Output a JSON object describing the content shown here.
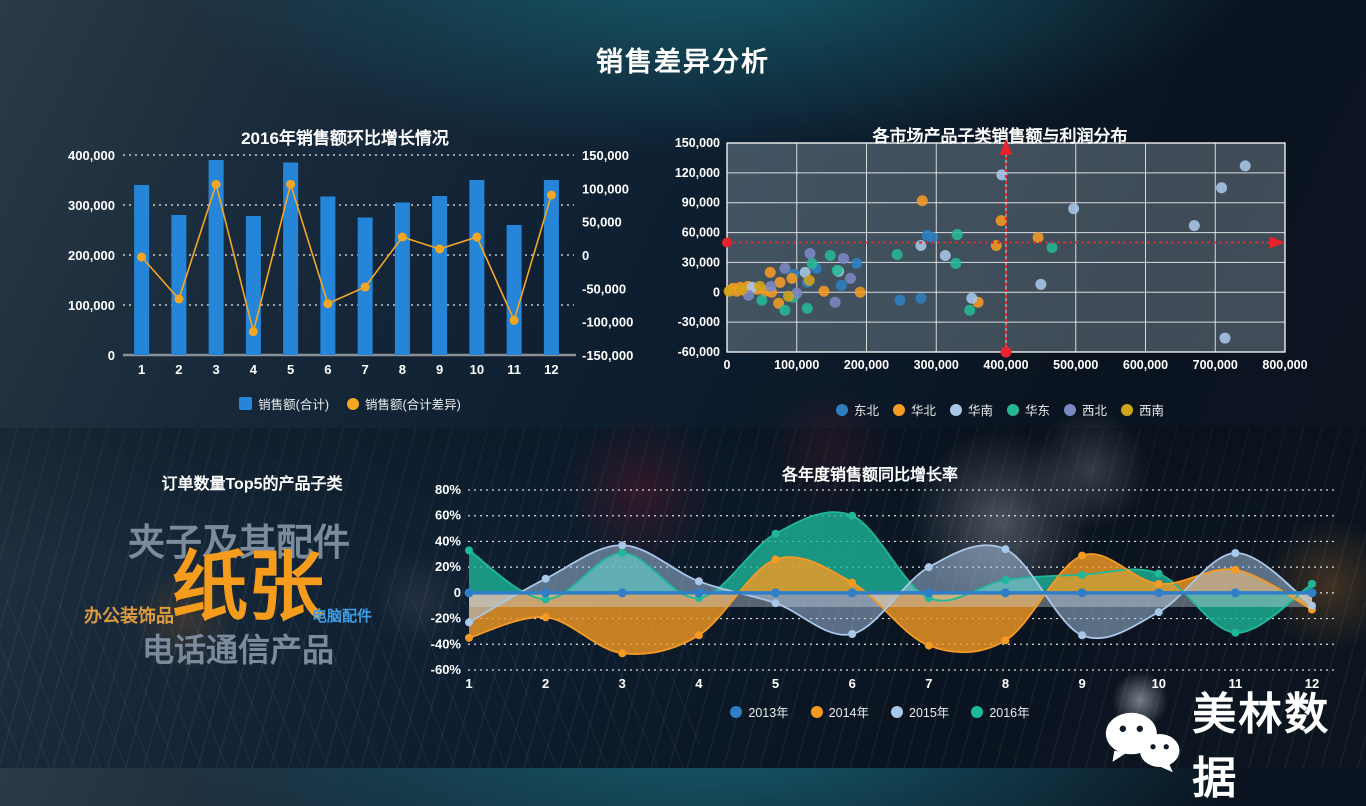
{
  "page_title": "销售差异分析",
  "logo": {
    "brand": "美林数据"
  },
  "chart_data": [
    {
      "type": "bar",
      "title": "2016年销售额环比增长情况",
      "categories": [
        "1",
        "2",
        "3",
        "4",
        "5",
        "6",
        "7",
        "8",
        "9",
        "10",
        "11",
        "12"
      ],
      "left_axis": {
        "min": 0,
        "max": 400000,
        "ticks": [
          "400,000",
          "300,000",
          "200,000",
          "100,000",
          "0"
        ],
        "tick_values": [
          400000,
          300000,
          200000,
          100000,
          0
        ]
      },
      "right_axis": {
        "min": -150000,
        "max": 150000,
        "ticks": [
          "150,000",
          "100,000",
          "50,000",
          "0",
          "-50,000",
          "-100,000",
          "-150,000"
        ],
        "tick_values": [
          150000,
          100000,
          50000,
          0,
          -50000,
          -100000,
          -150000
        ]
      },
      "series": [
        {
          "name": "销售额(合计)",
          "kind": "bar",
          "axis": "left",
          "color": "#2585d8",
          "values": [
            340000,
            280000,
            390000,
            278000,
            385000,
            317000,
            275000,
            305000,
            318000,
            350000,
            260000,
            350000
          ]
        },
        {
          "name": "销售额(合计差异)",
          "kind": "line",
          "axis": "right",
          "color": "#f5a623",
          "values": [
            -3000,
            -66000,
            106000,
            -115000,
            106000,
            -73000,
            -48000,
            27000,
            9000,
            27000,
            -98000,
            90000
          ]
        }
      ]
    },
    {
      "type": "scatter",
      "title": "各市场产品子类销售额与利润分布",
      "xlim": [
        0,
        800000
      ],
      "ylim": [
        -60000,
        150000
      ],
      "x_ticks": [
        "0",
        "100,000",
        "200,000",
        "300,000",
        "400,000",
        "500,000",
        "600,000",
        "700,000",
        "800,000"
      ],
      "x_tick_values": [
        0,
        100000,
        200000,
        300000,
        400000,
        500000,
        600000,
        700000,
        800000
      ],
      "y_ticks": [
        "150,000",
        "120,000",
        "90,000",
        "60,000",
        "30,000",
        "0",
        "-30,000",
        "-60,000"
      ],
      "y_tick_values": [
        150000,
        120000,
        90000,
        60000,
        30000,
        0,
        -30000,
        -60000
      ],
      "ref_x": 400000,
      "ref_y": 50000,
      "ref_color": "#e8232b",
      "series": [
        {
          "name": "东北",
          "color": "#2e7fc2",
          "points": [
            [
              287000,
              57000
            ],
            [
              295000,
              55000
            ],
            [
              186000,
              29000
            ],
            [
              164000,
              7000
            ],
            [
              115000,
              10000
            ],
            [
              96000,
              18000
            ],
            [
              248000,
              -8000
            ],
            [
              278000,
              -6000
            ],
            [
              128000,
              24000
            ]
          ]
        },
        {
          "name": "华北",
          "color": "#f59a23",
          "points": [
            [
              5000,
              2000
            ],
            [
              9000,
              4000
            ],
            [
              14000,
              1000
            ],
            [
              19000,
              5000
            ],
            [
              24000,
              2000
            ],
            [
              30000,
              6000
            ],
            [
              43000,
              3000
            ],
            [
              55000,
              1000
            ],
            [
              64000,
              0
            ],
            [
              76000,
              10000
            ],
            [
              93000,
              14000
            ],
            [
              62000,
              20000
            ],
            [
              139000,
              1000
            ],
            [
              191000,
              0
            ],
            [
              74000,
              -11000
            ],
            [
              360000,
              -10000
            ],
            [
              280000,
              92000
            ],
            [
              393000,
              72000
            ],
            [
              446000,
              55000
            ],
            [
              386000,
              47000
            ]
          ]
        },
        {
          "name": "华南",
          "color": "#a9c7e8",
          "points": [
            [
              112000,
              20000
            ],
            [
              160000,
              21000
            ],
            [
              278000,
              47000
            ],
            [
              313000,
              37000
            ],
            [
              351000,
              -6000
            ],
            [
              394000,
              118000
            ],
            [
              497000,
              84000
            ],
            [
              670000,
              67000
            ],
            [
              709000,
              105000
            ],
            [
              743000,
              127000
            ],
            [
              450000,
              8000
            ],
            [
              714000,
              -46000
            ],
            [
              36000,
              5000
            ]
          ]
        },
        {
          "name": "华东",
          "color": "#26b894",
          "points": [
            [
              50000,
              -8000
            ],
            [
              95000,
              -5000
            ],
            [
              115000,
              -16000
            ],
            [
              122000,
              29000
            ],
            [
              148000,
              37000
            ],
            [
              158000,
              22000
            ],
            [
              244000,
              38000
            ],
            [
              328000,
              29000
            ],
            [
              330000,
              58000
            ],
            [
              348000,
              -18000
            ],
            [
              466000,
              45000
            ],
            [
              83000,
              -18000
            ]
          ]
        },
        {
          "name": "西北",
          "color": "#7b88c4",
          "points": [
            [
              31000,
              -3000
            ],
            [
              63000,
              6000
            ],
            [
              83000,
              24000
            ],
            [
              100000,
              -1000
            ],
            [
              119000,
              39000
            ],
            [
              155000,
              -10000
            ],
            [
              167000,
              34000
            ],
            [
              177000,
              14000
            ]
          ]
        },
        {
          "name": "西南",
          "color": "#d1a31b",
          "points": [
            [
              3000,
              1000
            ],
            [
              21000,
              3000
            ],
            [
              47000,
              6000
            ],
            [
              88000,
              -4000
            ],
            [
              118000,
              12000
            ]
          ]
        }
      ]
    },
    {
      "type": "wordcloud",
      "title": "订单数量Top5的产品子类",
      "words": [
        {
          "text": "夹子及其配件",
          "size": 37,
          "color": "#7b8b9d"
        },
        {
          "text": "纸张",
          "size": 76,
          "color": "#f59c1c"
        },
        {
          "text": "办公装饰品",
          "size": 18,
          "color": "#de9a3e"
        },
        {
          "text": "电脑配件",
          "size": 15,
          "color": "#3f9be0"
        },
        {
          "text": "电话通信产品",
          "size": 32,
          "color": "#7b8b9d"
        }
      ]
    },
    {
      "type": "area",
      "title": "各年度销售额同比增长率",
      "categories": [
        "1",
        "2",
        "3",
        "4",
        "5",
        "6",
        "7",
        "8",
        "9",
        "10",
        "11",
        "12"
      ],
      "ylim": [
        -60,
        80
      ],
      "y_ticks": [
        "80%",
        "60%",
        "40%",
        "20%",
        "0",
        "-20%",
        "-40%",
        "-60%"
      ],
      "y_tick_values": [
        80,
        60,
        40,
        20,
        0,
        -20,
        -40,
        -60
      ],
      "series": [
        {
          "name": "2013年",
          "color": "#2e7fc8",
          "values": [
            0,
            0,
            0,
            0,
            0,
            0,
            0,
            0,
            0,
            0,
            0,
            0
          ]
        },
        {
          "name": "2014年",
          "color": "#f59a23",
          "values": [
            -35,
            -19,
            -47,
            -33,
            26,
            8,
            -41,
            -37,
            29,
            7,
            18,
            -13
          ]
        },
        {
          "name": "2015年",
          "color": "#a9c7e8",
          "values": [
            -23,
            11,
            37,
            9,
            -8,
            -32,
            20,
            34,
            -33,
            -15,
            31,
            -10
          ]
        },
        {
          "name": "2016年",
          "color": "#1eb99b",
          "values": [
            33,
            -5,
            31,
            -4,
            46,
            60,
            -4,
            10,
            14,
            15,
            -31,
            7
          ]
        }
      ]
    }
  ]
}
